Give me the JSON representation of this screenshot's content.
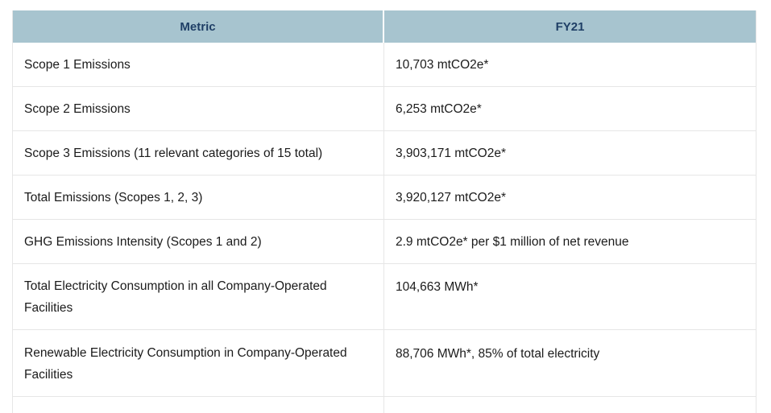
{
  "table": {
    "headers": {
      "metric": "Metric",
      "fy": "FY21"
    },
    "rows": [
      {
        "metric": "Scope 1 Emissions",
        "value": "10,703 mtCO2e*"
      },
      {
        "metric": "Scope 2 Emissions",
        "value": "6,253 mtCO2e*"
      },
      {
        "metric": "Scope 3 Emissions (11 relevant categories of 15 total)",
        "value": "3,903,171 mtCO2e*"
      },
      {
        "metric": "Total Emissions (Scopes 1, 2, 3)",
        "value": "3,920,127 mtCO2e*"
      },
      {
        "metric": "GHG Emissions Intensity (Scopes 1 and 2)",
        "value": "2.9 mtCO2e* per $1 million of net revenue"
      },
      {
        "metric": "Total Electricity Consumption in all Company-Operated Facilities",
        "value": "104,663 MWh*"
      },
      {
        "metric": "Renewable Electricity Consumption in Company-Operated Facilities",
        "value": "88,706 MWh*, 85% of total electricity"
      }
    ]
  },
  "colors": {
    "header_background": "#a7c4cf",
    "header_text": "#1f3f66",
    "row_divider": "#e6e6e6"
  }
}
